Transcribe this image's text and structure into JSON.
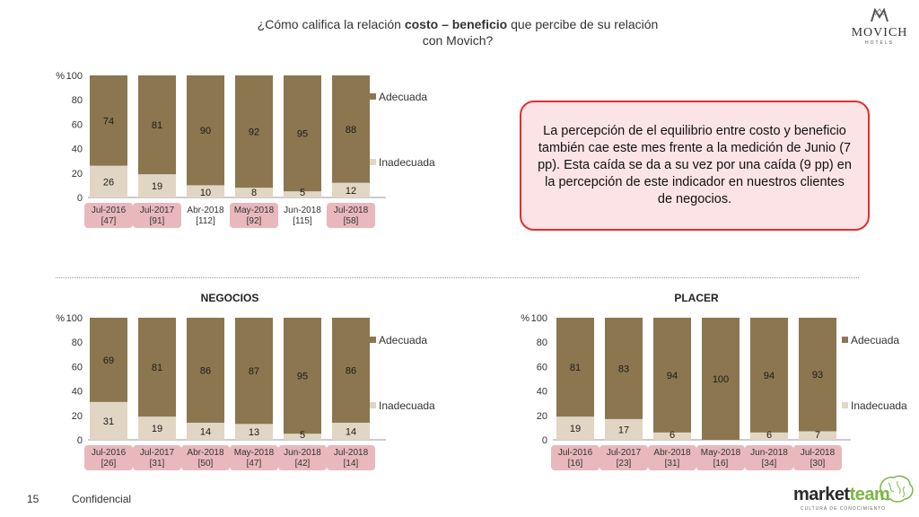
{
  "header": {
    "title_pre": "¿Cómo califica la relación ",
    "title_bold": "costo – beneficio",
    "title_post": " que percibe de su relación",
    "title_line2": "con Movich?"
  },
  "logo": {
    "name": "MOVICH",
    "sub": "HOTELS"
  },
  "callout": {
    "text": "La percepción de el equilibrio entre costo y beneficio también cae este mes frente a la medición de Junio (7 pp). Esta caída se da a su vez por una caída (9 pp) en la percepción de este indicador en nuestros clientes de negocios."
  },
  "footer": {
    "page": "15",
    "label": "Confidencial",
    "brand_a": "market",
    "brand_b": "team",
    "brand_sub": "CULTURA DE CONOCIMIENTO"
  },
  "colors": {
    "adecuada": "#8b7650",
    "inadecuada": "#e0d6c3",
    "highlight": "#e8b8bd",
    "callout_border": "#e03030",
    "callout_fill": "#fbe3e6",
    "brand_green": "#7ab648",
    "brand_dark": "#2a2a2a"
  },
  "chart_data": [
    {
      "type": "bar",
      "stacked": true,
      "title": "",
      "ylabel": "%",
      "ylim": [
        0,
        100
      ],
      "yticks": [
        0,
        20,
        40,
        60,
        80,
        100
      ],
      "categories": [
        [
          "Jul-2016",
          "[47]"
        ],
        [
          "Jul-2017",
          "[91]"
        ],
        [
          "Abr-2018",
          "[112]"
        ],
        [
          "May-2018",
          "[92]"
        ],
        [
          "Jun-2018",
          "[115]"
        ],
        [
          "Jul-2018",
          "[58]"
        ]
      ],
      "highlighted": [
        0,
        1,
        3,
        5
      ],
      "series": [
        {
          "name": "Inadecuada",
          "values": [
            26,
            19,
            10,
            8,
            5,
            12
          ]
        },
        {
          "name": "Adecuada",
          "values": [
            74,
            81,
            90,
            92,
            95,
            88
          ]
        }
      ],
      "legend": "right"
    },
    {
      "type": "bar",
      "stacked": true,
      "title": "NEGOCIOS",
      "ylabel": "%",
      "ylim": [
        0,
        100
      ],
      "yticks": [
        0,
        20,
        40,
        60,
        80,
        100
      ],
      "categories": [
        [
          "Jul-2016",
          "[26]"
        ],
        [
          "Jul-2017",
          "[31]"
        ],
        [
          "Abr-2018",
          "[50]"
        ],
        [
          "May-2018",
          "[47]"
        ],
        [
          "Jun-2018",
          "[42]"
        ],
        [
          "Jul-2018",
          "[14]"
        ]
      ],
      "highlighted": [
        0,
        1,
        2,
        3,
        4,
        5
      ],
      "series": [
        {
          "name": "Inadecuada",
          "values": [
            31,
            19,
            14,
            13,
            5,
            14
          ]
        },
        {
          "name": "Adecuada",
          "values": [
            69,
            81,
            86,
            87,
            95,
            86
          ]
        }
      ],
      "legend": "right"
    },
    {
      "type": "bar",
      "stacked": true,
      "title": "PLACER",
      "ylabel": "%",
      "ylim": [
        0,
        100
      ],
      "yticks": [
        0,
        20,
        40,
        60,
        80,
        100
      ],
      "categories": [
        [
          "Jul-2016",
          "[16]"
        ],
        [
          "Jul-2017",
          "[23]"
        ],
        [
          "Abr-2018",
          "[31]"
        ],
        [
          "May-2018",
          "[16]"
        ],
        [
          "Jun-2018",
          "[34]"
        ],
        [
          "Jul-2018",
          "[30]"
        ]
      ],
      "highlighted": [
        0,
        1,
        2,
        3,
        4,
        5
      ],
      "series": [
        {
          "name": "Inadecuada",
          "values": [
            19,
            17,
            6,
            null,
            6,
            7
          ]
        },
        {
          "name": "Adecuada",
          "values": [
            81,
            83,
            94,
            100,
            94,
            93
          ]
        }
      ],
      "legend": "right"
    }
  ]
}
